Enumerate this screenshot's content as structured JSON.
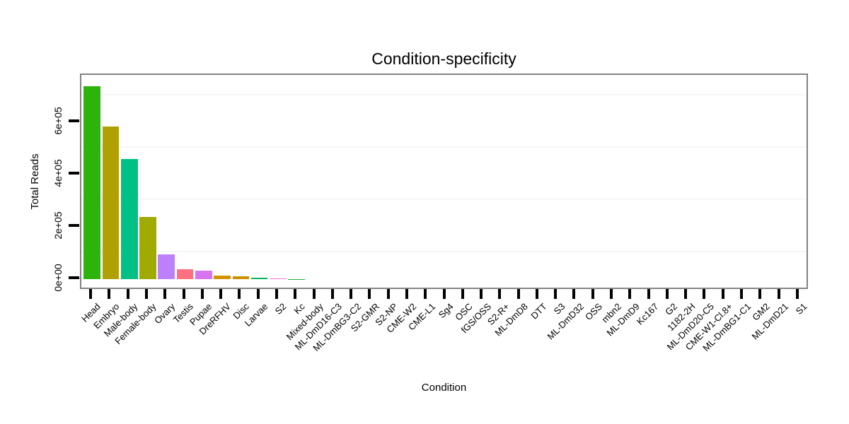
{
  "title": "Condition-specificity",
  "chart_data": {
    "type": "bar",
    "title": "Condition-specificity",
    "xlabel": "Condition",
    "ylabel": "Total Reads",
    "ylim": [
      0,
      740000
    ],
    "grid": "minor-horizontal-only",
    "legend": "none",
    "yticks": [
      {
        "value": 0,
        "label": "0e+00"
      },
      {
        "value": 200000,
        "label": "2e+05"
      },
      {
        "value": 400000,
        "label": "4e+05"
      },
      {
        "value": 600000,
        "label": "6e+05"
      }
    ],
    "minor_gridlines": [
      100000,
      300000,
      500000,
      700000
    ],
    "categories": [
      "Head",
      "Embryo",
      "Male-body",
      "Female-body",
      "Ovary",
      "Testis",
      "Pupae",
      "DreRFHV",
      "Disc",
      "Larvae",
      "S2",
      "Kc",
      "Mixed-body",
      "ML-DmD16-C3",
      "ML-DmBG3-C2",
      "S2-GMR",
      "S2-NP",
      "CME-W2",
      "CME-L1",
      "Sg4",
      "OSC",
      "fGS/OSS",
      "S2-R+",
      "ML-DmD8",
      "DTT",
      "S3",
      "ML-DmD32",
      "OSS",
      "mbn2",
      "ML-DmD9",
      "Kc167",
      "G2",
      "1182-2H",
      "ML-DmD20-C5",
      "CME-W1-Cl.8+",
      "ML-DmBG1-C1",
      "GM2",
      "ML-DmD21",
      "S1"
    ],
    "values": [
      740000,
      585000,
      460000,
      240000,
      95000,
      40000,
      33000,
      14000,
      11000,
      5000,
      3000,
      2000,
      0,
      0,
      0,
      0,
      0,
      0,
      0,
      0,
      0,
      0,
      0,
      0,
      0,
      0,
      0,
      0,
      0,
      0,
      0,
      0,
      0,
      0,
      0,
      0,
      0,
      0,
      0
    ],
    "bar_colors": [
      "#2cb40c",
      "#b1a004",
      "#00c086",
      "#9fab01",
      "#bc80fb",
      "#fd7082",
      "#d873f2",
      "#d29500",
      "#cc8f00",
      "#00b75d",
      "#ee7be4",
      "#1db235",
      null,
      null,
      null,
      null,
      null,
      null,
      null,
      null,
      null,
      null,
      null,
      null,
      null,
      null,
      null,
      null,
      null,
      null,
      null,
      null,
      null,
      null,
      null,
      null,
      null,
      null,
      null
    ]
  },
  "colors": {
    "background": "#ffffff",
    "panel_border": "#828282",
    "grid_minor": "#f6f6f6",
    "tick": "#000000",
    "text": "#000000"
  }
}
